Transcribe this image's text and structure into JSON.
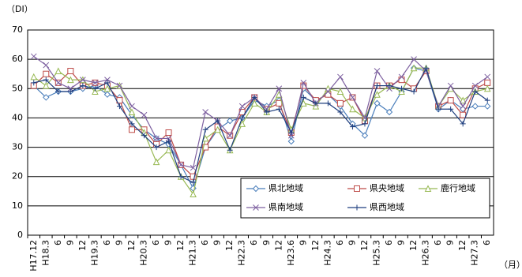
{
  "chart_data": {
    "type": "line",
    "y_label": "（DI）",
    "x_unit": "（月）",
    "categories": [
      "H17.12",
      "H18.3",
      "6",
      "9",
      "12",
      "H19.3",
      "6",
      "9",
      "12",
      "H20.3",
      "6",
      "9",
      "12",
      "H21.3",
      "6",
      "9",
      "12",
      "H22.3",
      "6",
      "9",
      "12",
      "H23.6",
      "9",
      "12",
      "H24.3",
      "6",
      "9",
      "12",
      "H25.3",
      "6",
      "9",
      "12",
      "H26.3",
      "6",
      "9",
      "12",
      "H27.3",
      "6"
    ],
    "ylim": [
      0,
      70
    ],
    "yticks": [
      0,
      10,
      20,
      30,
      40,
      50,
      60,
      70
    ],
    "grid": true,
    "series": [
      {
        "name": "県北地域",
        "color": "#4a7ebb",
        "marker": "diamond",
        "values": [
          51,
          47,
          49,
          49,
          50,
          51,
          48,
          47,
          41,
          36,
          33,
          31,
          24,
          16,
          30,
          36,
          39,
          40,
          46,
          44,
          46,
          32,
          50,
          46,
          48,
          44,
          38,
          34,
          45,
          42,
          49,
          57,
          56,
          43,
          46,
          43,
          44,
          44
        ]
      },
      {
        "name": "県央地域",
        "color": "#be4b48",
        "marker": "square",
        "values": [
          51,
          55,
          52,
          56,
          51,
          52,
          51,
          46,
          36,
          36,
          31,
          35,
          24,
          20,
          30,
          37,
          34,
          42,
          47,
          43,
          45,
          35,
          51,
          46,
          48,
          45,
          47,
          39,
          51,
          51,
          53,
          50,
          56,
          44,
          46,
          41,
          50,
          52
        ]
      },
      {
        "name": "鹿行地域",
        "color": "#98b954",
        "marker": "triangle",
        "values": [
          54,
          51,
          56,
          53,
          53,
          49,
          50,
          51,
          42,
          35,
          25,
          29,
          20,
          14,
          33,
          36,
          29,
          38,
          45,
          42,
          48,
          36,
          45,
          44,
          50,
          49,
          43,
          40,
          48,
          51,
          49,
          57,
          57,
          44,
          50,
          46,
          49,
          50
        ]
      },
      {
        "name": "県南地域",
        "color": "#7d60a0",
        "marker": "x",
        "values": [
          61,
          58,
          52,
          50,
          53,
          52,
          53,
          51,
          44,
          41,
          33,
          33,
          24,
          23,
          42,
          39,
          34,
          44,
          47,
          43,
          50,
          34,
          52,
          45,
          49,
          54,
          47,
          40,
          56,
          50,
          54,
          60,
          56,
          44,
          51,
          44,
          51,
          54
        ]
      },
      {
        "name": "県西地域",
        "color": "#1f3f7f",
        "marker": "plus",
        "values": [
          52,
          53,
          49,
          49,
          51,
          50,
          52,
          44,
          38,
          34,
          30,
          32,
          20,
          18,
          36,
          39,
          29,
          40,
          47,
          42,
          43,
          35,
          47,
          45,
          45,
          42,
          37,
          38,
          51,
          51,
          50,
          49,
          57,
          43,
          43,
          38,
          49,
          46
        ]
      }
    ]
  }
}
